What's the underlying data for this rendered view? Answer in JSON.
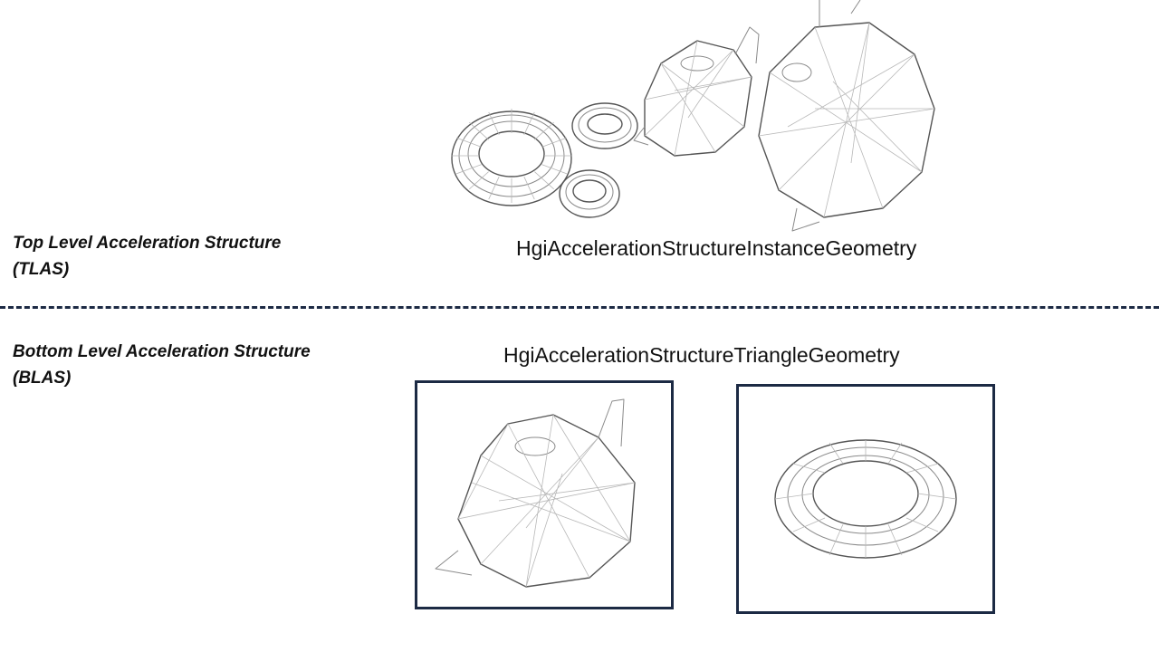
{
  "tlas": {
    "label_line1": "Top Level Acceleration Structure",
    "label_line2": "(TLAS)",
    "caption": "HgiAccelerationStructureInstanceGeometry"
  },
  "blas": {
    "label_line1": "Bottom Level Acceleration Structure",
    "label_line2": "(BLAS)",
    "caption": "HgiAccelerationStructureTriangleGeometry"
  },
  "colors": {
    "divider": "#1c2a44",
    "box_border": "#1c2a44",
    "wireframe": "#8a8a8a"
  },
  "icons": {
    "teapot": "teapot-wireframe-icon",
    "torus": "torus-wireframe-icon"
  }
}
